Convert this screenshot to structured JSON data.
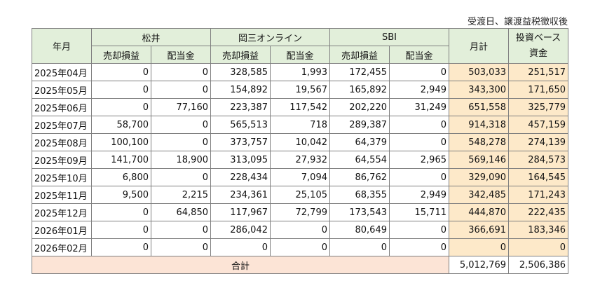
{
  "note": "受渡日、譲渡益税徴収後",
  "header": {
    "year_month": "年月",
    "groups": [
      "松井",
      "岡三オンライン",
      "SBI"
    ],
    "sub": [
      "売却損益",
      "配当金",
      "売却損益",
      "配当金",
      "売却損益",
      "配当金"
    ],
    "monthly": "月計",
    "invest": [
      "投資ベース",
      "資金"
    ]
  },
  "rows": [
    [
      "2025年04月",
      "0",
      "0",
      "328,585",
      "1,993",
      "172,455",
      "0",
      "503,033",
      "251,517"
    ],
    [
      "2025年05月",
      "0",
      "0",
      "154,892",
      "19,567",
      "165,892",
      "2,949",
      "343,300",
      "171,650"
    ],
    [
      "2025年06月",
      "0",
      "77,160",
      "223,387",
      "117,542",
      "202,220",
      "31,249",
      "651,558",
      "325,779"
    ],
    [
      "2025年07月",
      "58,700",
      "0",
      "565,513",
      "718",
      "289,387",
      "0",
      "914,318",
      "457,159"
    ],
    [
      "2025年08月",
      "100,100",
      "0",
      "373,757",
      "10,042",
      "64,379",
      "0",
      "548,278",
      "274,139"
    ],
    [
      "2025年09月",
      "141,700",
      "18,900",
      "313,095",
      "27,932",
      "64,554",
      "2,965",
      "569,146",
      "284,573"
    ],
    [
      "2025年10月",
      "6,800",
      "0",
      "228,434",
      "7,094",
      "86,762",
      "0",
      "329,090",
      "164,545"
    ],
    [
      "2025年11月",
      "9,500",
      "2,215",
      "234,361",
      "25,105",
      "68,355",
      "2,949",
      "342,485",
      "171,243"
    ],
    [
      "2025年12月",
      "0",
      "64,850",
      "117,967",
      "72,799",
      "173,543",
      "15,711",
      "444,870",
      "222,435"
    ],
    [
      "2026年01月",
      "0",
      "0",
      "286,042",
      "0",
      "80,649",
      "0",
      "366,691",
      "183,346"
    ],
    [
      "2026年02月",
      "0",
      "0",
      "0",
      "0",
      "0",
      "0",
      "0",
      "0"
    ]
  ],
  "total": {
    "label": "合計",
    "values": [
      "5,012,769",
      "2,506,386"
    ]
  }
}
